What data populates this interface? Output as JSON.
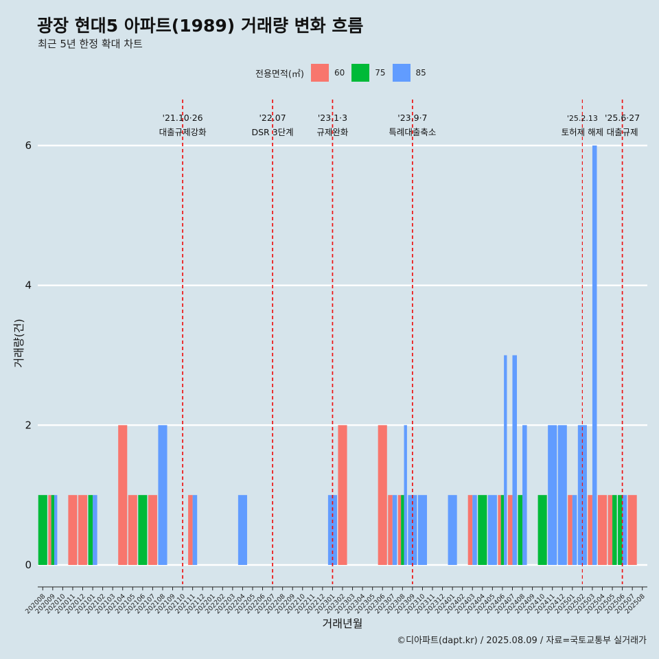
{
  "title": "광장 현대5 아파트(1989) 거래량 변화 흐름",
  "subtitle": "최근 5년 한정 확대 차트",
  "caption": "©디아파트(dapt.kr) / 2025.08.09 / 자료=국토교통부 실거래가",
  "legend": {
    "title": "전용면적(㎡)",
    "items": [
      {
        "label": "60",
        "color": "#f8766d"
      },
      {
        "label": "75",
        "color": "#00ba38"
      },
      {
        "label": "85",
        "color": "#619cff"
      }
    ]
  },
  "chart_data": {
    "type": "bar",
    "xlabel": "거래년월",
    "ylabel": "거래량(건)",
    "ylim": [
      0,
      6
    ],
    "yticks": [
      0,
      2,
      4,
      6
    ],
    "grid": true,
    "categories": [
      "202008",
      "202009",
      "202010",
      "202011",
      "202012",
      "202101",
      "202102",
      "202103",
      "202104",
      "202105",
      "202106",
      "202107",
      "202108",
      "202109",
      "202110",
      "202111",
      "202112",
      "202201",
      "202202",
      "202203",
      "202204",
      "202205",
      "202206",
      "202207",
      "202208",
      "202209",
      "202210",
      "202211",
      "202212",
      "202301",
      "202302",
      "202303",
      "202304",
      "202305",
      "202306",
      "202307",
      "202308",
      "202309",
      "202310",
      "202311",
      "202312",
      "202401",
      "202402",
      "202403",
      "202404",
      "202405",
      "202406",
      "202407",
      "202408",
      "202409",
      "202410",
      "202411",
      "202412",
      "202501",
      "202502",
      "202503",
      "202504",
      "202505",
      "202506",
      "202507",
      "202508"
    ],
    "series": [
      {
        "name": "60",
        "color": "#f8766d",
        "values": [
          0,
          1,
          0,
          1,
          1,
          0,
          0,
          0,
          2,
          1,
          0,
          1,
          0,
          0,
          0,
          1,
          0,
          0,
          0,
          0,
          0,
          0,
          0,
          0,
          0,
          0,
          0,
          0,
          0,
          0,
          2,
          0,
          0,
          0,
          2,
          1,
          1,
          0,
          0,
          0,
          0,
          0,
          0,
          1,
          0,
          0,
          1,
          1,
          0,
          0,
          0,
          0,
          0,
          1,
          0,
          1,
          1,
          1,
          0,
          1,
          0
        ]
      },
      {
        "name": "75",
        "color": "#00ba38",
        "values": [
          1,
          1,
          0,
          0,
          0,
          1,
          0,
          0,
          0,
          0,
          1,
          0,
          0,
          0,
          0,
          0,
          0,
          0,
          0,
          0,
          0,
          0,
          0,
          0,
          0,
          0,
          0,
          0,
          0,
          0,
          0,
          0,
          0,
          0,
          0,
          0,
          1,
          0,
          0,
          0,
          0,
          0,
          0,
          0,
          1,
          0,
          1,
          0,
          1,
          0,
          1,
          0,
          0,
          0,
          0,
          0,
          0,
          1,
          1,
          0,
          0
        ]
      },
      {
        "name": "85",
        "color": "#619cff",
        "values": [
          0,
          1,
          0,
          0,
          0,
          1,
          0,
          0,
          0,
          0,
          0,
          0,
          2,
          0,
          0,
          1,
          0,
          0,
          0,
          0,
          1,
          0,
          0,
          0,
          0,
          0,
          0,
          0,
          0,
          1,
          0,
          0,
          0,
          0,
          0,
          1,
          2,
          1,
          1,
          0,
          0,
          1,
          0,
          1,
          0,
          1,
          3,
          3,
          2,
          0,
          0,
          2,
          2,
          1,
          2,
          6,
          0,
          0,
          1,
          0,
          0
        ]
      }
    ],
    "annotations": [
      {
        "x": "202110",
        "date": "'21.10·26",
        "label": "대출규제강화"
      },
      {
        "x": "202207",
        "date": "'22.07",
        "label": "DSR 3단계"
      },
      {
        "x": "202301",
        "date": "'23.1·3",
        "label": "규제완화"
      },
      {
        "x": "202309",
        "date": "'23.9·7",
        "label": "특례대출축소"
      },
      {
        "x": "202502",
        "date": "'25.2.13",
        "label": "토허제 해제"
      },
      {
        "x": "202506",
        "date": "'25.6·27",
        "label": "대출규제"
      }
    ]
  }
}
